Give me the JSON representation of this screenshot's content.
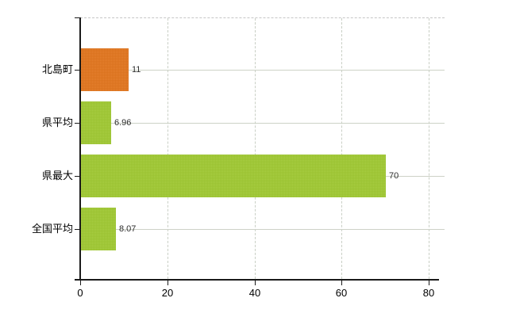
{
  "chart_data": {
    "type": "bar",
    "orientation": "horizontal",
    "title": "",
    "xlabel": "",
    "ylabel": "",
    "categories": [
      "北島町",
      "県平均",
      "県最大",
      "全国平均"
    ],
    "values": [
      11,
      6.96,
      70,
      8.07
    ],
    "value_labels": [
      "11",
      "6.96",
      "70",
      "8.07"
    ],
    "series_colors": [
      "#e1741c",
      "#9fc831",
      "#9fc831",
      "#9fc831"
    ],
    "x_ticks": [
      0,
      20,
      40,
      60,
      80
    ],
    "x_tick_labels": [
      "0",
      "20",
      "40",
      "60",
      "80"
    ],
    "xlim": [
      0,
      83.6
    ],
    "grid": true,
    "legend": false,
    "colors": {
      "bar_highlight": "#e1741c",
      "bar_default": "#9fc831",
      "axis": "#1a1a1a",
      "gridline": "#cdd2c7",
      "top_border": "#c6c6c6",
      "value_text": "#2e2e2e",
      "label_text": "#000000",
      "background": "#ffffff"
    }
  }
}
